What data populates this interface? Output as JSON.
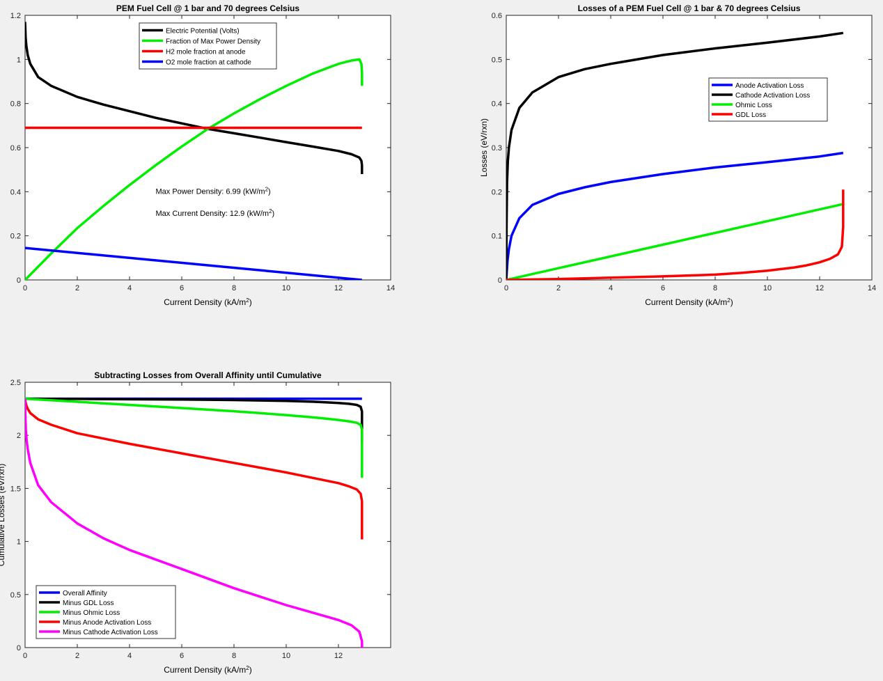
{
  "figure": {
    "background": "#f0f0f0"
  },
  "chart_data": [
    {
      "type": "line",
      "title": "PEM Fuel Cell @ 1 bar and 70 degrees Celsius",
      "xlabel": "Current Density (kA/m²)",
      "ylabel": "",
      "xlim": [
        0,
        14
      ],
      "ylim": [
        0,
        1.2
      ],
      "xticks": [
        0,
        2,
        4,
        6,
        8,
        10,
        12,
        14
      ],
      "yticks": [
        0,
        0.2,
        0.4,
        0.6,
        0.8,
        1,
        1.2
      ],
      "xtick_labels": [
        "0",
        "2",
        "4",
        "6",
        "8",
        "10",
        "12",
        "14"
      ],
      "ytick_labels": [
        "0",
        "0.2",
        "0.4",
        "0.6",
        "0.8",
        "1",
        "1.2"
      ],
      "grid": false,
      "legend_position": "top-center",
      "annotations": [
        {
          "text": "Max Power Density:   6.99 (kW/m²)",
          "x": 5.0,
          "y": 0.39
        },
        {
          "text": "Max Current Density:   12.9 (kW/m²)",
          "x": 5.0,
          "y": 0.29
        }
      ],
      "series": [
        {
          "name": "Electric Potential (Volts)",
          "color": "#000000",
          "x": [
            0,
            0.02,
            0.05,
            0.1,
            0.2,
            0.5,
            1,
            2,
            3,
            4,
            5,
            6,
            7,
            8,
            9,
            10,
            11,
            12,
            12.5,
            12.8,
            12.88,
            12.9,
            12.9
          ],
          "y": [
            1.17,
            1.1,
            1.06,
            1.02,
            0.98,
            0.92,
            0.88,
            0.83,
            0.795,
            0.765,
            0.735,
            0.71,
            0.685,
            0.665,
            0.645,
            0.625,
            0.605,
            0.585,
            0.57,
            0.555,
            0.54,
            0.52,
            0.48
          ]
        },
        {
          "name": "Fraction of Max Power Density",
          "color": "#00ee00",
          "x": [
            0,
            1,
            2,
            3,
            4,
            5,
            6,
            7,
            8,
            9,
            10,
            11,
            12,
            12.5,
            12.8,
            12.88,
            12.9,
            12.9
          ],
          "y": [
            0,
            0.12,
            0.235,
            0.335,
            0.43,
            0.52,
            0.605,
            0.685,
            0.755,
            0.82,
            0.88,
            0.935,
            0.98,
            0.995,
            1.0,
            0.98,
            0.94,
            0.88
          ]
        },
        {
          "name": "H2 mole fraction at anode",
          "color": "#ff0000",
          "x": [
            0,
            12.9
          ],
          "y": [
            0.69,
            0.69
          ]
        },
        {
          "name": "O2 mole fraction at cathode",
          "color": "#0000ff",
          "x": [
            0,
            12.9
          ],
          "y": [
            0.145,
            0
          ]
        }
      ]
    },
    {
      "type": "line",
      "title": "Losses of a PEM Fuel Cell @ 1 bar & 70 degrees Celsius",
      "xlabel": "Current Density (kA/m²)",
      "ylabel": "Losses (eV/rxn)",
      "xlim": [
        0,
        14
      ],
      "ylim": [
        0,
        0.6
      ],
      "xticks": [
        0,
        2,
        4,
        6,
        8,
        10,
        12,
        14
      ],
      "yticks": [
        0,
        0.1,
        0.2,
        0.3,
        0.4,
        0.5,
        0.6
      ],
      "xtick_labels": [
        "0",
        "2",
        "4",
        "6",
        "8",
        "10",
        "12",
        "14"
      ],
      "ytick_labels": [
        "0",
        "0.1",
        "0.2",
        "0.3",
        "0.4",
        "0.5",
        "0.6"
      ],
      "grid": false,
      "legend_position": "top-right",
      "series": [
        {
          "name": "Anode Activation Loss",
          "color": "#0000ff",
          "x": [
            0,
            0.02,
            0.05,
            0.1,
            0.2,
            0.5,
            1,
            2,
            3,
            4,
            6,
            8,
            10,
            12,
            12.9
          ],
          "y": [
            0,
            0.02,
            0.045,
            0.07,
            0.1,
            0.14,
            0.17,
            0.195,
            0.21,
            0.222,
            0.24,
            0.255,
            0.267,
            0.28,
            0.288
          ]
        },
        {
          "name": "Cathode Activation Loss",
          "color": "#000000",
          "x": [
            0,
            0.01,
            0.03,
            0.06,
            0.1,
            0.2,
            0.5,
            1,
            2,
            3,
            4,
            6,
            8,
            10,
            12,
            12.9
          ],
          "y": [
            0,
            0.12,
            0.22,
            0.27,
            0.3,
            0.34,
            0.39,
            0.425,
            0.46,
            0.478,
            0.49,
            0.51,
            0.525,
            0.538,
            0.552,
            0.56
          ]
        },
        {
          "name": "Ohmic Loss",
          "color": "#00ee00",
          "x": [
            0,
            12.9
          ],
          "y": [
            0,
            0.172
          ]
        },
        {
          "name": "GDL Loss",
          "color": "#ff0000",
          "x": [
            0,
            2,
            4,
            6,
            8,
            9,
            10,
            11,
            11.5,
            12,
            12.4,
            12.7,
            12.85,
            12.9,
            12.9
          ],
          "y": [
            0,
            0.002,
            0.005,
            0.008,
            0.012,
            0.016,
            0.021,
            0.028,
            0.033,
            0.04,
            0.048,
            0.058,
            0.075,
            0.12,
            0.205
          ]
        }
      ]
    },
    {
      "type": "line",
      "title": "Subtracting Losses from Overall Affinity until Cumulative",
      "xlabel": "Current Density (kA/m²)",
      "ylabel": "Cumulative Losses (eV/rxn)",
      "xlim": [
        0,
        14
      ],
      "ylim": [
        0,
        2.5
      ],
      "xticks": [
        0,
        2,
        4,
        6,
        8,
        10,
        12,
        14
      ],
      "yticks": [
        0,
        0.5,
        1,
        1.5,
        2,
        2.5
      ],
      "xtick_labels": [
        "0",
        "2",
        "4",
        "6",
        "8",
        "10",
        "12",
        ""
      ],
      "ytick_labels": [
        "0",
        "0.5",
        "1",
        "1.5",
        "2",
        "2.5"
      ],
      "grid": false,
      "legend_position": "bottom-left",
      "series": [
        {
          "name": "Overall Affinity",
          "color": "#0000ff",
          "x": [
            0,
            12.9
          ],
          "y": [
            2.345,
            2.345
          ]
        },
        {
          "name": "Minus GDL Loss",
          "color": "#000000",
          "x": [
            0,
            2,
            4,
            6,
            8,
            9,
            10,
            11,
            11.5,
            12,
            12.4,
            12.7,
            12.85,
            12.9,
            12.9
          ],
          "y": [
            2.345,
            2.343,
            2.34,
            2.337,
            2.333,
            2.329,
            2.324,
            2.317,
            2.312,
            2.305,
            2.297,
            2.287,
            2.27,
            2.225,
            1.94
          ]
        },
        {
          "name": "Minus Ohmic Loss",
          "color": "#00ee00",
          "x": [
            0,
            2,
            4,
            6,
            8,
            9,
            10,
            11,
            11.5,
            12,
            12.4,
            12.7,
            12.85,
            12.9,
            12.9
          ],
          "y": [
            2.345,
            2.316,
            2.287,
            2.257,
            2.227,
            2.209,
            2.191,
            2.17,
            2.158,
            2.145,
            2.132,
            2.118,
            2.099,
            2.052,
            1.6
          ]
        },
        {
          "name": "Minus Anode Activation Loss",
          "color": "#ff0000",
          "x": [
            0,
            0.02,
            0.05,
            0.1,
            0.2,
            0.5,
            1,
            2,
            3,
            4,
            6,
            8,
            10,
            11,
            12,
            12.4,
            12.7,
            12.85,
            12.9,
            12.9
          ],
          "y": [
            2.345,
            2.31,
            2.28,
            2.25,
            2.21,
            2.15,
            2.1,
            2.02,
            1.97,
            1.92,
            1.83,
            1.74,
            1.65,
            1.6,
            1.55,
            1.52,
            1.49,
            1.45,
            1.38,
            1.02
          ]
        },
        {
          "name": "Minus Cathode Activation Loss",
          "color": "#ff00ff",
          "x": [
            0,
            0.01,
            0.03,
            0.06,
            0.1,
            0.2,
            0.5,
            1,
            2,
            3,
            4,
            6,
            8,
            10,
            11,
            12,
            12.5,
            12.8,
            12.9,
            12.9
          ],
          "y": [
            2.345,
            2.2,
            2.05,
            1.95,
            1.87,
            1.74,
            1.53,
            1.37,
            1.17,
            1.03,
            0.92,
            0.74,
            0.56,
            0.4,
            0.33,
            0.26,
            0.21,
            0.15,
            0.06,
            0
          ]
        }
      ]
    }
  ]
}
